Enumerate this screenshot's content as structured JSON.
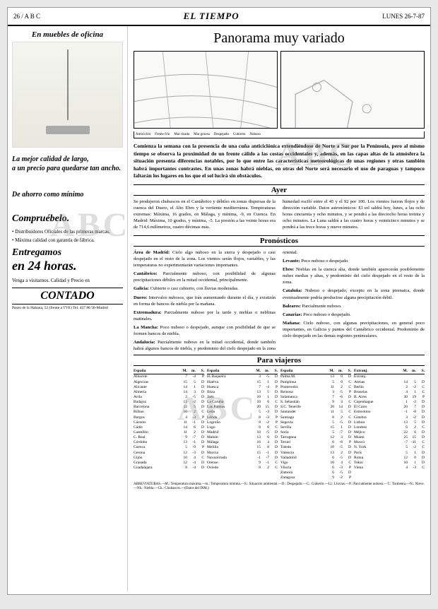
{
  "header": {
    "left": "26 / A B C",
    "center": "EL TIEMPO",
    "right": "LUNES 26-7-87"
  },
  "ad": {
    "title": "En muebles de oficina",
    "headline1": "La mejor calidad de largo,",
    "headline2": "a un precio para quedarse tan ancho.",
    "savings": "De ahorro como mínimo",
    "check": "Compruébelo.",
    "bullet1": "• Distribuidores Oficiales de las primeras marcas.",
    "bullet2": "• Máxima calidad con garantía de fábrica.",
    "deliver1": "Entregamos",
    "deliver2": "en 24 horas.",
    "visit": "Venga a visitarnos. Calidad y Precio en",
    "logo": "CONTADO",
    "address": "Paseo de la Habana, 52 (frente a TVE) Tel. 457 86 56-Madrid"
  },
  "main": {
    "title": "Panorama muy variado",
    "legend_items": [
      "Anticiclón",
      "Frente frío",
      "Mar rizada",
      "Mar gruesa",
      "Despejado",
      "Cubierto",
      "Nuboso"
    ],
    "intro": "Comienza la semana con la presencia de una cuña anticiclónica extendiéndose de Norte a Sur por la Península, pero al mismo tiempo se observa la proximidad de un frente cálido a las costas occidentales y, además, en las capas altas de la atmósfera la situación presenta diferencias notables, por lo que entre las características meteorológicas de unas regiones y otras también habrá importantes contrastes. En unas zonas habrá nieblas, en otras del Norte será necesario el uso de paraguas y tampoco faltarán los lugares en los que el sol lucirá sin obstáculos.",
    "ayer_title": "Ayer",
    "ayer_left": "Se produjeron chubascos en el Cantábrico y débiles en zonas dispersas de la cuenca del Duero, el Alto Ebro y la vertiente mediterránea. Temperaturas extremas: Máxima, 16 grados, en Málaga, y mínima, -9, en Cuenca. En Madrid: Máxima, 10 grados, y mínima, -5. La presión a las veinte horas era de 714,6 milímetros, cuatro décimas más.",
    "ayer_right": "humedad osciló entre el 45 y el 92 por 100. Los vientos fueron flojos y de dirección variable. Datos astronómicos: El sol saldrá hoy, lunes, a las ocho horas cincuenta y ocho minutos, y se pondrá a las dieciocho horas treinta y ocho minutos. La Luna saldrá a las cuatro horas y veinticinco minutos y se pondrá a las trece horas y nueve minutos.",
    "pron_title": "Pronósticos",
    "pron": {
      "area_madrid": "Cielo algo nuboso en la sierra y despejado o casi despejado en el resto de la zona. Los vientos serán flojos, variables, y las temperaturas no experimentarán variaciones importantes.",
      "cantabrico": "Parcialmente nuboso, con posibilidad de algunas precipitaciones débiles en la mitad occidental, principalmente.",
      "galicia": "Cubierto o casi cubierto, con lluvias moderadas.",
      "duero": "Intervalos nubosos, que irán aumentando durante el día, y existirán en forma de bancos de niebla por la mañana.",
      "extremadura": "Parcialmente nuboso por la tarde y nieblas o neblinas matinales.",
      "lamancha": "Poco nuboso o despejado, aunque con posibilidad de que se formen bancos de niebla.",
      "andalucia": "Parcialmente nuboso en la mitad occidental, donde también habrá algunos bancos de niebla, y predominio del cielo despejado en la zona oriental.",
      "levante": "Poco nuboso o despejado.",
      "ebro": "Nieblas en la cuenca alta, donde también aparecerán posiblemente nubes medias y altas, y predominio del cielo despejado en el resto de la zona.",
      "cataluna": "Nuboso o despejado, excepto en la zona pirenaica, donde eventualmente podría producirse alguna precipitación débil.",
      "baleares": "Parcialmente nuboso.",
      "canarias": "Poco nuboso o despejado.",
      "manana": "Cielo nuboso, con algunas precipitaciones, en general poco importantes, en Galicia y puntos del Cantábrico occidental. Predominio de cielo despejado en las demás regiones peninsulares."
    },
    "viajeros_title": "Para viajeros",
    "cols": [
      "España",
      "M. m. S."
    ],
    "cities1": [
      [
        "Albacete",
        "7",
        "-4",
        "P"
      ],
      [
        "Algeciras",
        "15",
        "5",
        "D"
      ],
      [
        "Alicante",
        "14",
        "1",
        "D"
      ],
      [
        "Almería",
        "14",
        "3",
        "D"
      ],
      [
        "Avila",
        "2",
        "-5",
        "D"
      ],
      [
        "Badajoz",
        "13",
        "-2",
        "D"
      ],
      [
        "Barcelona",
        "12",
        "5",
        "D"
      ],
      [
        "Bilbao",
        "10",
        "2",
        "C"
      ],
      [
        "Burgos",
        "4",
        "-3",
        "P"
      ],
      [
        "Cáceres",
        "11",
        "-1",
        "D"
      ],
      [
        "Cádiz",
        "14",
        "6",
        "D"
      ],
      [
        "Castellón",
        "11",
        "2",
        "D"
      ],
      [
        "C. Real",
        "9",
        "-7",
        "D"
      ],
      [
        "Córdoba",
        "13",
        "-1",
        "D"
      ],
      [
        "Cuenca",
        "5",
        "-9",
        "P"
      ],
      [
        "Gerona",
        "12",
        "-3",
        "D"
      ],
      [
        "Gijón",
        "10",
        "4",
        "C"
      ],
      [
        "Granada",
        "12",
        "-4",
        "D"
      ],
      [
        "Guadalajara",
        "8",
        "-4",
        "D"
      ]
    ],
    "cities2": [
      [
        "H. Baqueira",
        "3",
        "-5",
        "D"
      ],
      [
        "Huelva",
        "15",
        "1",
        "D"
      ],
      [
        "Huesca",
        "7",
        "-4",
        "P"
      ],
      [
        "Ibiza",
        "13",
        "5",
        "D"
      ],
      [
        "Jaén",
        "10",
        "1",
        "D"
      ],
      [
        "La Coruña",
        "10",
        "6",
        "C"
      ],
      [
        "Las Palmas",
        "20",
        "15",
        "D"
      ],
      [
        "León",
        "5",
        "-3",
        "D"
      ],
      [
        "Lérida",
        "8",
        "-3",
        "P"
      ],
      [
        "Logroño",
        "8",
        "-2",
        "P"
      ],
      [
        "Lugo",
        "8",
        "0",
        "C"
      ],
      [
        "Madrid",
        "10",
        "-5",
        "D"
      ],
      [
        "Mahón",
        "13",
        "6",
        "D"
      ],
      [
        "Málaga",
        "16",
        "4",
        "D"
      ],
      [
        "Melilla",
        "15",
        "8",
        "D"
      ],
      [
        "Murcia",
        "15",
        "-1",
        "D"
      ],
      [
        "Navacerrada",
        "-1",
        "-7",
        "D"
      ],
      [
        "Orense",
        "9",
        "-1",
        "C"
      ],
      [
        "Oviedo",
        "8",
        "2",
        "C"
      ]
    ],
    "cities3": [
      [
        "Palma M.",
        "13",
        "0",
        "D"
      ],
      [
        "Pamplona",
        "5",
        "0",
        "C"
      ],
      [
        "Pontevedra",
        "11",
        "2",
        "C"
      ],
      [
        "Reinosa",
        "3",
        "-5",
        "P"
      ],
      [
        "Salamanca",
        "7",
        "-6",
        "D"
      ],
      [
        "S. Sebastián",
        "9",
        "4",
        "C"
      ],
      [
        "S.C. Tenerife",
        "20",
        "14",
        "D"
      ],
      [
        "Santander",
        "11",
        "5",
        "C"
      ],
      [
        "Santiago",
        "8",
        "2",
        "C"
      ],
      [
        "Segovia",
        "5",
        "-5",
        "D"
      ],
      [
        "Sevilla",
        "15",
        "1",
        "D"
      ],
      [
        "Soria",
        "5",
        "-7",
        "D"
      ],
      [
        "Tarragona",
        "12",
        "3",
        "D"
      ],
      [
        "Teruel",
        "6",
        "-8",
        "P"
      ],
      [
        "Toledo",
        "10",
        "-5",
        "D"
      ],
      [
        "Valencia",
        "13",
        "2",
        "D"
      ],
      [
        "Valladolid",
        "6",
        "-5",
        "D"
      ],
      [
        "Vigo",
        "10",
        "4",
        "C"
      ],
      [
        "Vitoria",
        "6",
        "-3",
        "P"
      ],
      [
        "Zamora",
        "6",
        "-5",
        "D"
      ],
      [
        "Zaragoza",
        "9",
        "-2",
        "P"
      ]
    ],
    "cities4": [
      [
        "Extranj.",
        "",
        "",
        ""
      ],
      [
        "Atenas",
        "14",
        "5",
        "D"
      ],
      [
        "Berlín",
        "2",
        "-2",
        "C"
      ],
      [
        "Bruselas",
        "4",
        "1",
        "C"
      ],
      [
        "B. Aires",
        "30",
        "19",
        "P"
      ],
      [
        "Copenhague",
        "1",
        "-2",
        "D"
      ],
      [
        "El Cairo",
        "20",
        "7",
        "D"
      ],
      [
        "Estocolmo",
        "-1",
        "-8",
        "D"
      ],
      [
        "Ginebra",
        "3",
        "-2",
        "D"
      ],
      [
        "Lisboa",
        "13",
        "5",
        "D"
      ],
      [
        "Londres",
        "6",
        "2",
        "C"
      ],
      [
        "Méjico",
        "22",
        "6",
        "D"
      ],
      [
        "Miami",
        "25",
        "15",
        "D"
      ],
      [
        "Moscú",
        "-7",
        "-11",
        "C"
      ],
      [
        "N. York",
        "5",
        "-2",
        "C"
      ],
      [
        "París",
        "5",
        "1",
        "D"
      ],
      [
        "Roma",
        "12",
        "0",
        "D"
      ],
      [
        "Tokio",
        "10",
        "1",
        "D"
      ],
      [
        "Viena",
        "4",
        "-3",
        "C"
      ]
    ],
    "abbrev": "ABREVIATURAS.—M.: Temperatura máxima.—m.: Temperatura mínima.—S.: Situación ambiental.—D.: Despejado.—C.: Cubierto.—Ll.: Lluvias.—P.: Parcialmente nuboso.—T.: Tormenta.—N.: Nieve.—Nb.: Niebla.—Ch.: Chubascos.—(Datos del INM.)"
  },
  "watermark": "ABC"
}
